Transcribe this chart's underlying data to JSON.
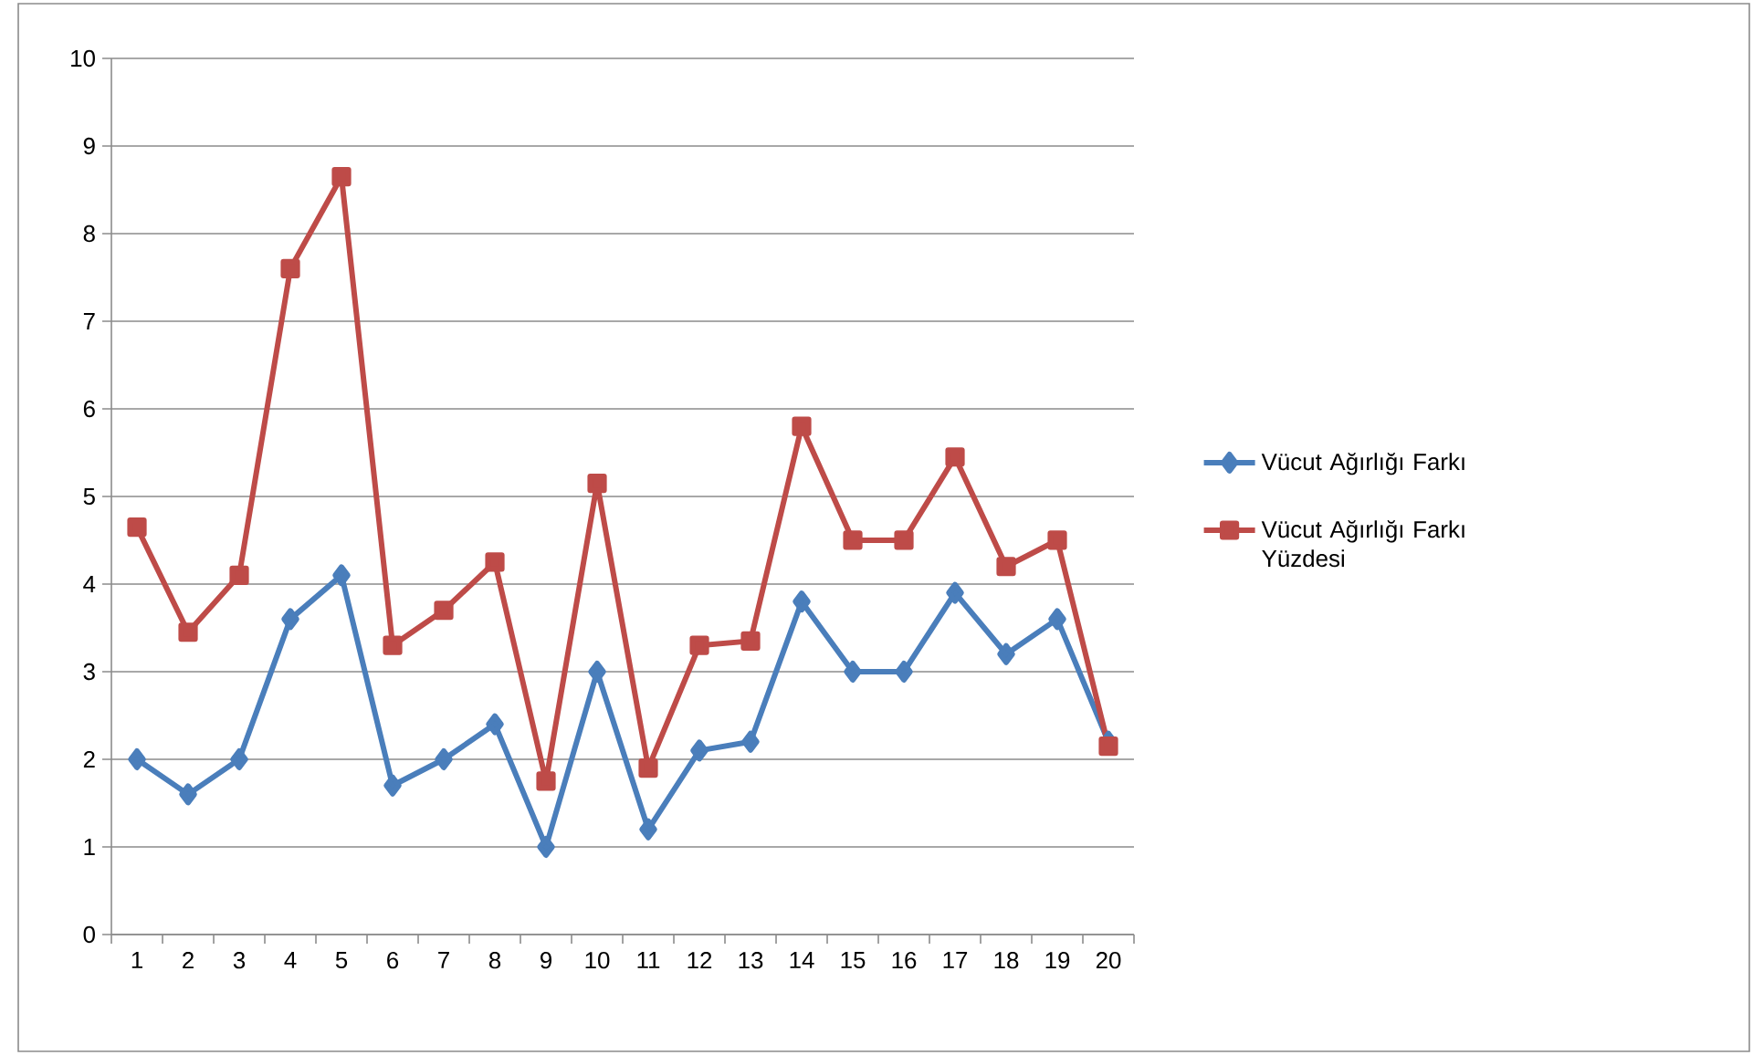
{
  "chart_data": {
    "type": "line",
    "categories": [
      "1",
      "2",
      "3",
      "4",
      "5",
      "6",
      "7",
      "8",
      "9",
      "10",
      "11",
      "12",
      "13",
      "14",
      "15",
      "16",
      "17",
      "18",
      "19",
      "20"
    ],
    "series": [
      {
        "name": "Vücut Ağırlığı Farkı",
        "color": "#4a7ebb",
        "marker": "diamond",
        "values": [
          2.0,
          1.6,
          2.0,
          3.6,
          4.1,
          1.7,
          2.0,
          2.4,
          1.0,
          3.0,
          1.2,
          2.1,
          2.2,
          3.8,
          3.0,
          3.0,
          3.9,
          3.2,
          3.6,
          2.2
        ]
      },
      {
        "name": "Vücut Ağırlığı Farkı Yüzdesi",
        "color": "#be4b48",
        "marker": "square",
        "values": [
          4.65,
          3.45,
          4.1,
          7.6,
          8.65,
          3.3,
          3.7,
          4.25,
          1.75,
          5.15,
          1.9,
          3.3,
          3.35,
          5.8,
          4.5,
          4.5,
          5.45,
          4.2,
          4.5,
          2.15
        ]
      }
    ],
    "ylim": [
      0,
      10
    ],
    "yticks": [
      0,
      1,
      2,
      3,
      4,
      5,
      6,
      7,
      8,
      9,
      10
    ],
    "grid": "y",
    "legend": "right",
    "line_style": "solid"
  }
}
